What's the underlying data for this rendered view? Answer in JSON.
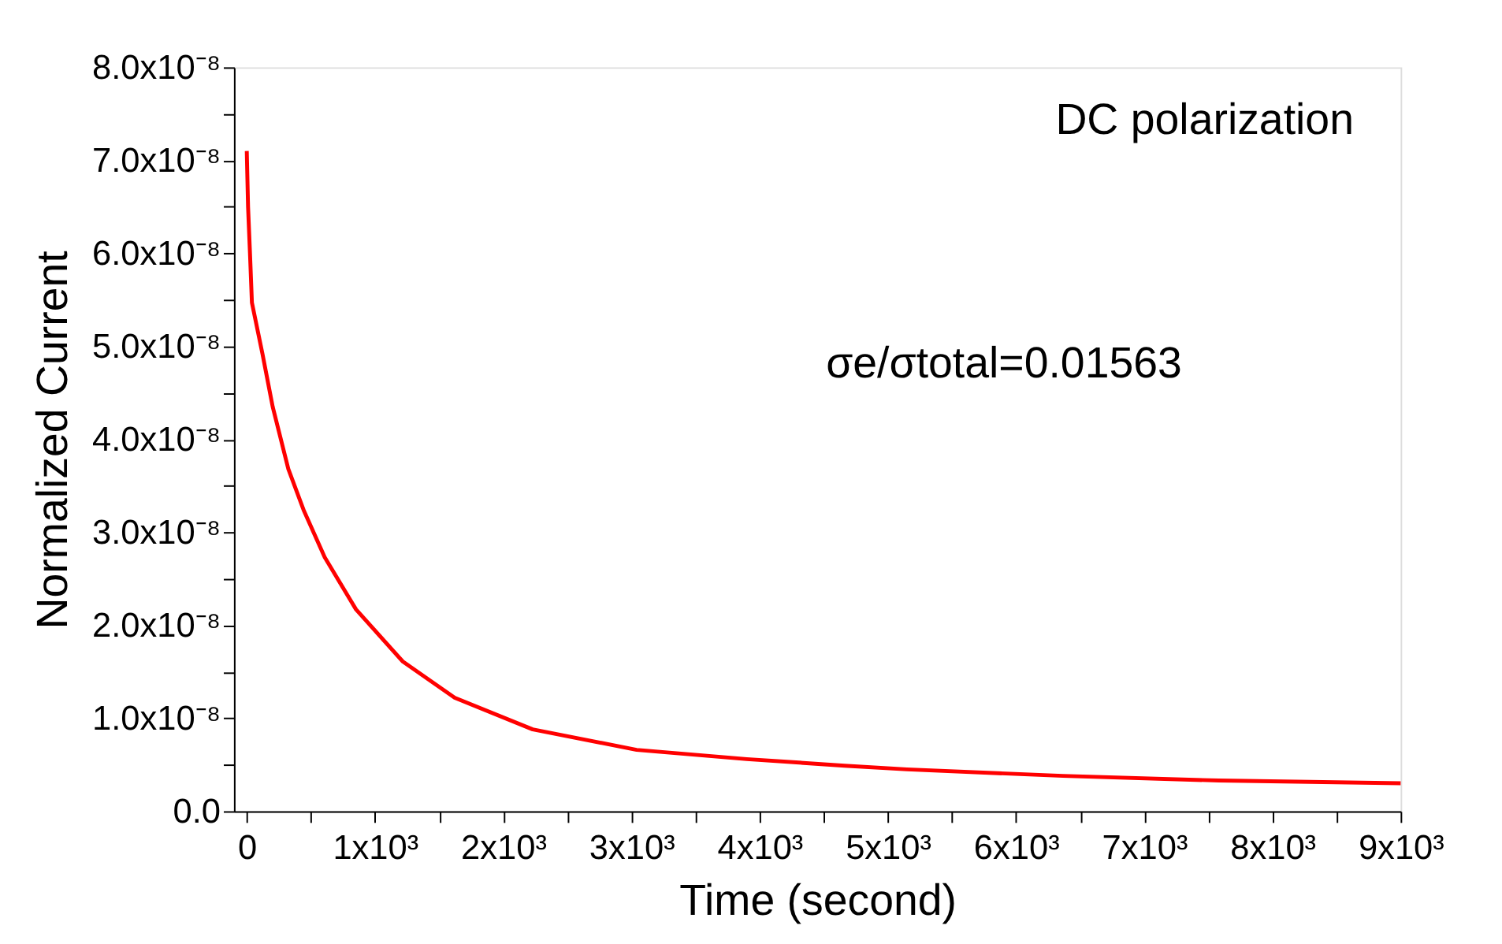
{
  "chart_data": {
    "type": "line",
    "xlabel": "Time (second)",
    "ylabel": "Normalized Current",
    "annotations": [
      "DC polarization",
      "σe/σtotal=0.01563"
    ],
    "x": [
      0,
      10,
      25,
      40,
      122,
      202,
      324,
      446,
      608,
      852,
      1217,
      1622,
      2230,
      3041,
      3900,
      4663,
      5149,
      6365,
      7582,
      9000
    ],
    "series": [
      {
        "color": "#ff0000",
        "values": [
          7.1e-08,
          6.5e-08,
          6e-08,
          5.47e-08,
          4.92e-08,
          4.35e-08,
          3.68e-08,
          3.23e-08,
          2.73e-08,
          2.17e-08,
          1.61e-08,
          1.22e-08,
          8.8e-09,
          6.6e-09,
          5.6e-09,
          4.9e-09,
          4.5e-09,
          3.8e-09,
          3.3e-09,
          3e-09
        ]
      }
    ],
    "xlim": [
      -100,
      9000
    ],
    "xticks": [
      0,
      {
        "value": 500,
        "label": null
      },
      {
        "value": 1000,
        "label": "1x10³"
      },
      {
        "value": 1500,
        "label": null
      },
      {
        "value": 2000,
        "label": "2x10³"
      },
      {
        "value": 2500,
        "label": null
      },
      {
        "value": 3000,
        "label": "3x10³"
      },
      {
        "value": 3500,
        "label": null
      },
      {
        "value": 4000,
        "label": "4x10³"
      },
      {
        "value": 4500,
        "label": null
      },
      {
        "value": 5000,
        "label": "5x10³"
      },
      {
        "value": 5500,
        "label": null
      },
      {
        "value": 6000,
        "label": "6x10³"
      },
      {
        "value": 6500,
        "label": null
      },
      {
        "value": 7000,
        "label": "7x10³"
      },
      {
        "value": 7500,
        "label": null
      },
      {
        "value": 8000,
        "label": "8x10³"
      },
      {
        "value": 8500,
        "label": null
      },
      {
        "value": 9000,
        "label": "9x10³"
      }
    ],
    "ylim": [
      0,
      8e-08
    ],
    "yticks": [
      {
        "value": 0,
        "label": "0.0"
      },
      {
        "value": 5e-09,
        "label": null
      },
      {
        "value": 1e-08,
        "label": "1.0x10⁻⁸"
      },
      {
        "value": 1.5e-08,
        "label": null
      },
      {
        "value": 2e-08,
        "label": "2.0x10⁻⁸"
      },
      {
        "value": 2.5e-08,
        "label": null
      },
      {
        "value": 3e-08,
        "label": "3.0x10⁻⁸"
      },
      {
        "value": 3.5e-08,
        "label": null
      },
      {
        "value": 4e-08,
        "label": "4.0x10⁻⁸"
      },
      {
        "value": 4.5e-08,
        "label": null
      },
      {
        "value": 5e-08,
        "label": "5.0x10⁻⁸"
      },
      {
        "value": 5.5e-08,
        "label": null
      },
      {
        "value": 6e-08,
        "label": "6.0x10⁻⁸"
      },
      {
        "value": 6.5e-08,
        "label": null
      },
      {
        "value": 7e-08,
        "label": "7.0x10⁻⁸"
      },
      {
        "value": 7.5e-08,
        "label": null
      },
      {
        "value": 8e-08,
        "label": "8.0x10⁻⁸"
      }
    ],
    "grid": false,
    "legend": false
  }
}
